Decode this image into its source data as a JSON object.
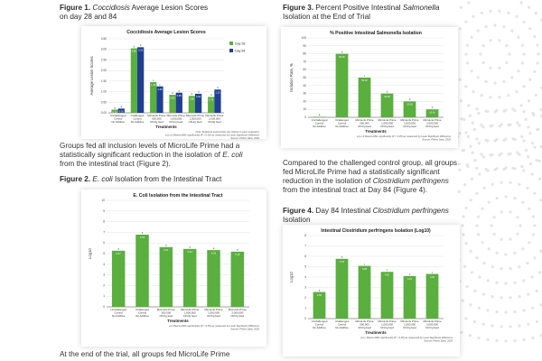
{
  "figure1": {
    "label": "Figure 1.",
    "title_italic": "Coccidiosis",
    "title_rest": " Average Lesion Scores",
    "title_line2": "on day 28 and 84"
  },
  "figure3": {
    "label": "Figure 3.",
    "title_pre": " Percent Positive Intestinal ",
    "title_italic": "Salmonella",
    "title_line2": "Isolation at the End of Trial"
  },
  "figure2": {
    "label": "Figure 2.",
    "title_italic": " E. coli",
    "title_rest": " Isolation from the Intestinal Tract"
  },
  "figure4": {
    "label": "Figure 4.",
    "title_pre": " Day 84 Intestinal ",
    "title_italic": "Clostridium perfringens",
    "title_line2": "Isolation"
  },
  "paragraphs": {
    "p1_l1": "Groups fed all inclusion levels of MicroLife Prime had a",
    "p1_l2": "statistically significant reduction in the isolation of ",
    "p1_l2_italic": "E. coli",
    "p1_l3": "from the intestinal tract (Figure 2).",
    "p2_l1": "Compared to the challenged control group, all groups",
    "p2_l2": "fed MicroLife Prime had a statistically significant",
    "p2_l3_pre": "reduction in the isolation of ",
    "p2_l3_italic": "Clostridium perfringens",
    "p2_l4": "from the intestinal tract at Day 84 (Figure 4).",
    "p3_l1": "At the end of the trial, all groups fed MicroLife Prime"
  },
  "treatments": [
    [
      "Unchallenged",
      "Control",
      "No Additive"
    ],
    [
      "Challenged",
      "Control",
      "No Additive"
    ],
    [
      "MicroLife Prime",
      "500,000",
      "CFU/g feed"
    ],
    [
      "MicroLife Prime",
      "1,000,000",
      "CFU/g feed"
    ],
    [
      "MicroLife Prime",
      "1,500,000",
      "CFU/g feed"
    ],
    [
      "MicroLife Prime",
      "2,000,000",
      "CFU/g feed"
    ]
  ],
  "colors": {
    "green": "#5aaf3f",
    "blue": "#1f3f92",
    "grid": "#d9d9d9",
    "axis": "#555555"
  },
  "chart_data": [
    {
      "type": "bar",
      "title": "Coccidiosis Average Lesion Scores",
      "xlabel": "Treatments",
      "ylabel": "Average Lesion Scores",
      "ylim": [
        0,
        3.5
      ],
      "yticks": [
        "0.00",
        "0.50",
        "1.00",
        "1.50",
        "2.00",
        "2.50",
        "3.00",
        "3.50"
      ],
      "grid": true,
      "legend": "top-right",
      "series": [
        {
          "name": "Day 28",
          "values": [
            0.15,
            3.05,
            1.45,
            0.85,
            0.8,
            0.75
          ],
          "labels": [
            "0.15",
            "3.05",
            "1.45",
            "0.85",
            "0.80",
            "0.75"
          ],
          "sig": [
            "a",
            "b",
            "c",
            "d",
            "d",
            "d"
          ]
        },
        {
          "name": "Day 84",
          "values": [
            0.2,
            3.1,
            1.25,
            0.95,
            0.9,
            1.1
          ],
          "labels": [
            "0.20",
            "3.10",
            "1.25",
            "0.95",
            "0.90",
            "1.10"
          ],
          "sig": [
            "a",
            "b",
            "c",
            "d",
            "d",
            "d"
          ]
        }
      ],
      "notes": [
        "Note: Statistical superscripts are relative to each evaluation",
        "a,b,c,d Means differ significantly (P < 0.05) as measured by Least Significant Difference",
        "Source: Phibro Data, 2020"
      ]
    },
    {
      "type": "bar",
      "title": "% Positive Intestinal Salmonella Isolation",
      "xlabel": "Treatments",
      "ylabel": "Isolation Rate, %",
      "ylim": [
        0,
        100
      ],
      "yticks": [
        "0",
        "10",
        "20",
        "30",
        "40",
        "50",
        "60",
        "70",
        "80",
        "90",
        "100"
      ],
      "grid": true,
      "series": [
        {
          "name": "",
          "values": [
            0,
            80,
            50,
            30,
            20,
            10
          ],
          "labels": [
            "0.00",
            "80.00",
            "50.00",
            "30.00",
            "20.00",
            "10.00"
          ],
          "sig": [
            "a",
            "b",
            "c",
            "d",
            "d",
            "d"
          ]
        }
      ],
      "notes": [
        "a,b,c,d Means differ significantly (P < 0.05) as measured by Least Significant Difference",
        "Source: Phibro Data, 2020"
      ]
    },
    {
      "type": "bar",
      "title": "E. Coli Isolation from the Intestinal Tract",
      "xlabel": "Treatments",
      "ylabel": "Log10",
      "ylim": [
        0,
        10
      ],
      "yticks": [
        "0",
        "1",
        "2",
        "3",
        "4",
        "5",
        "6",
        "7",
        "8",
        "9",
        "10"
      ],
      "grid": true,
      "series": [
        {
          "name": "",
          "values": [
            5.27,
            6.78,
            5.61,
            5.44,
            5.33,
            5.18
          ],
          "labels": [
            "5.27",
            "6.78",
            "5.61",
            "5.44",
            "5.33",
            "5.18"
          ],
          "sig": [
            "a",
            "b",
            "a",
            "a",
            "a",
            "a"
          ]
        }
      ],
      "notes": [
        "a,b Means differ significantly (P < 0.05) as measured by Least Significant Difference",
        "Source: Phibro Data, 2020"
      ]
    },
    {
      "type": "bar",
      "title": "Intestinal Clostridium perfringens Isolation (Log10)",
      "xlabel": "Treatments",
      "ylabel": "Log10",
      "ylim": [
        0,
        8
      ],
      "yticks": [
        "0",
        "1",
        "2",
        "3",
        "4",
        "5",
        "6",
        "7",
        "8"
      ],
      "grid": true,
      "series": [
        {
          "name": "",
          "values": [
            2.56,
            5.76,
            5.08,
            4.5,
            4.1,
            4.3
          ],
          "labels": [
            "2.56",
            "5.76",
            "5.08",
            "4.50",
            "4.10",
            "4.30"
          ],
          "sig": [
            "a",
            "b",
            "c",
            "c",
            "c",
            "c"
          ]
        }
      ],
      "notes": [
        "a,b,c Means differ significantly (P < 0.05) as measured by Least Significant Difference",
        "Source: Phibro Data, 2020"
      ]
    }
  ]
}
